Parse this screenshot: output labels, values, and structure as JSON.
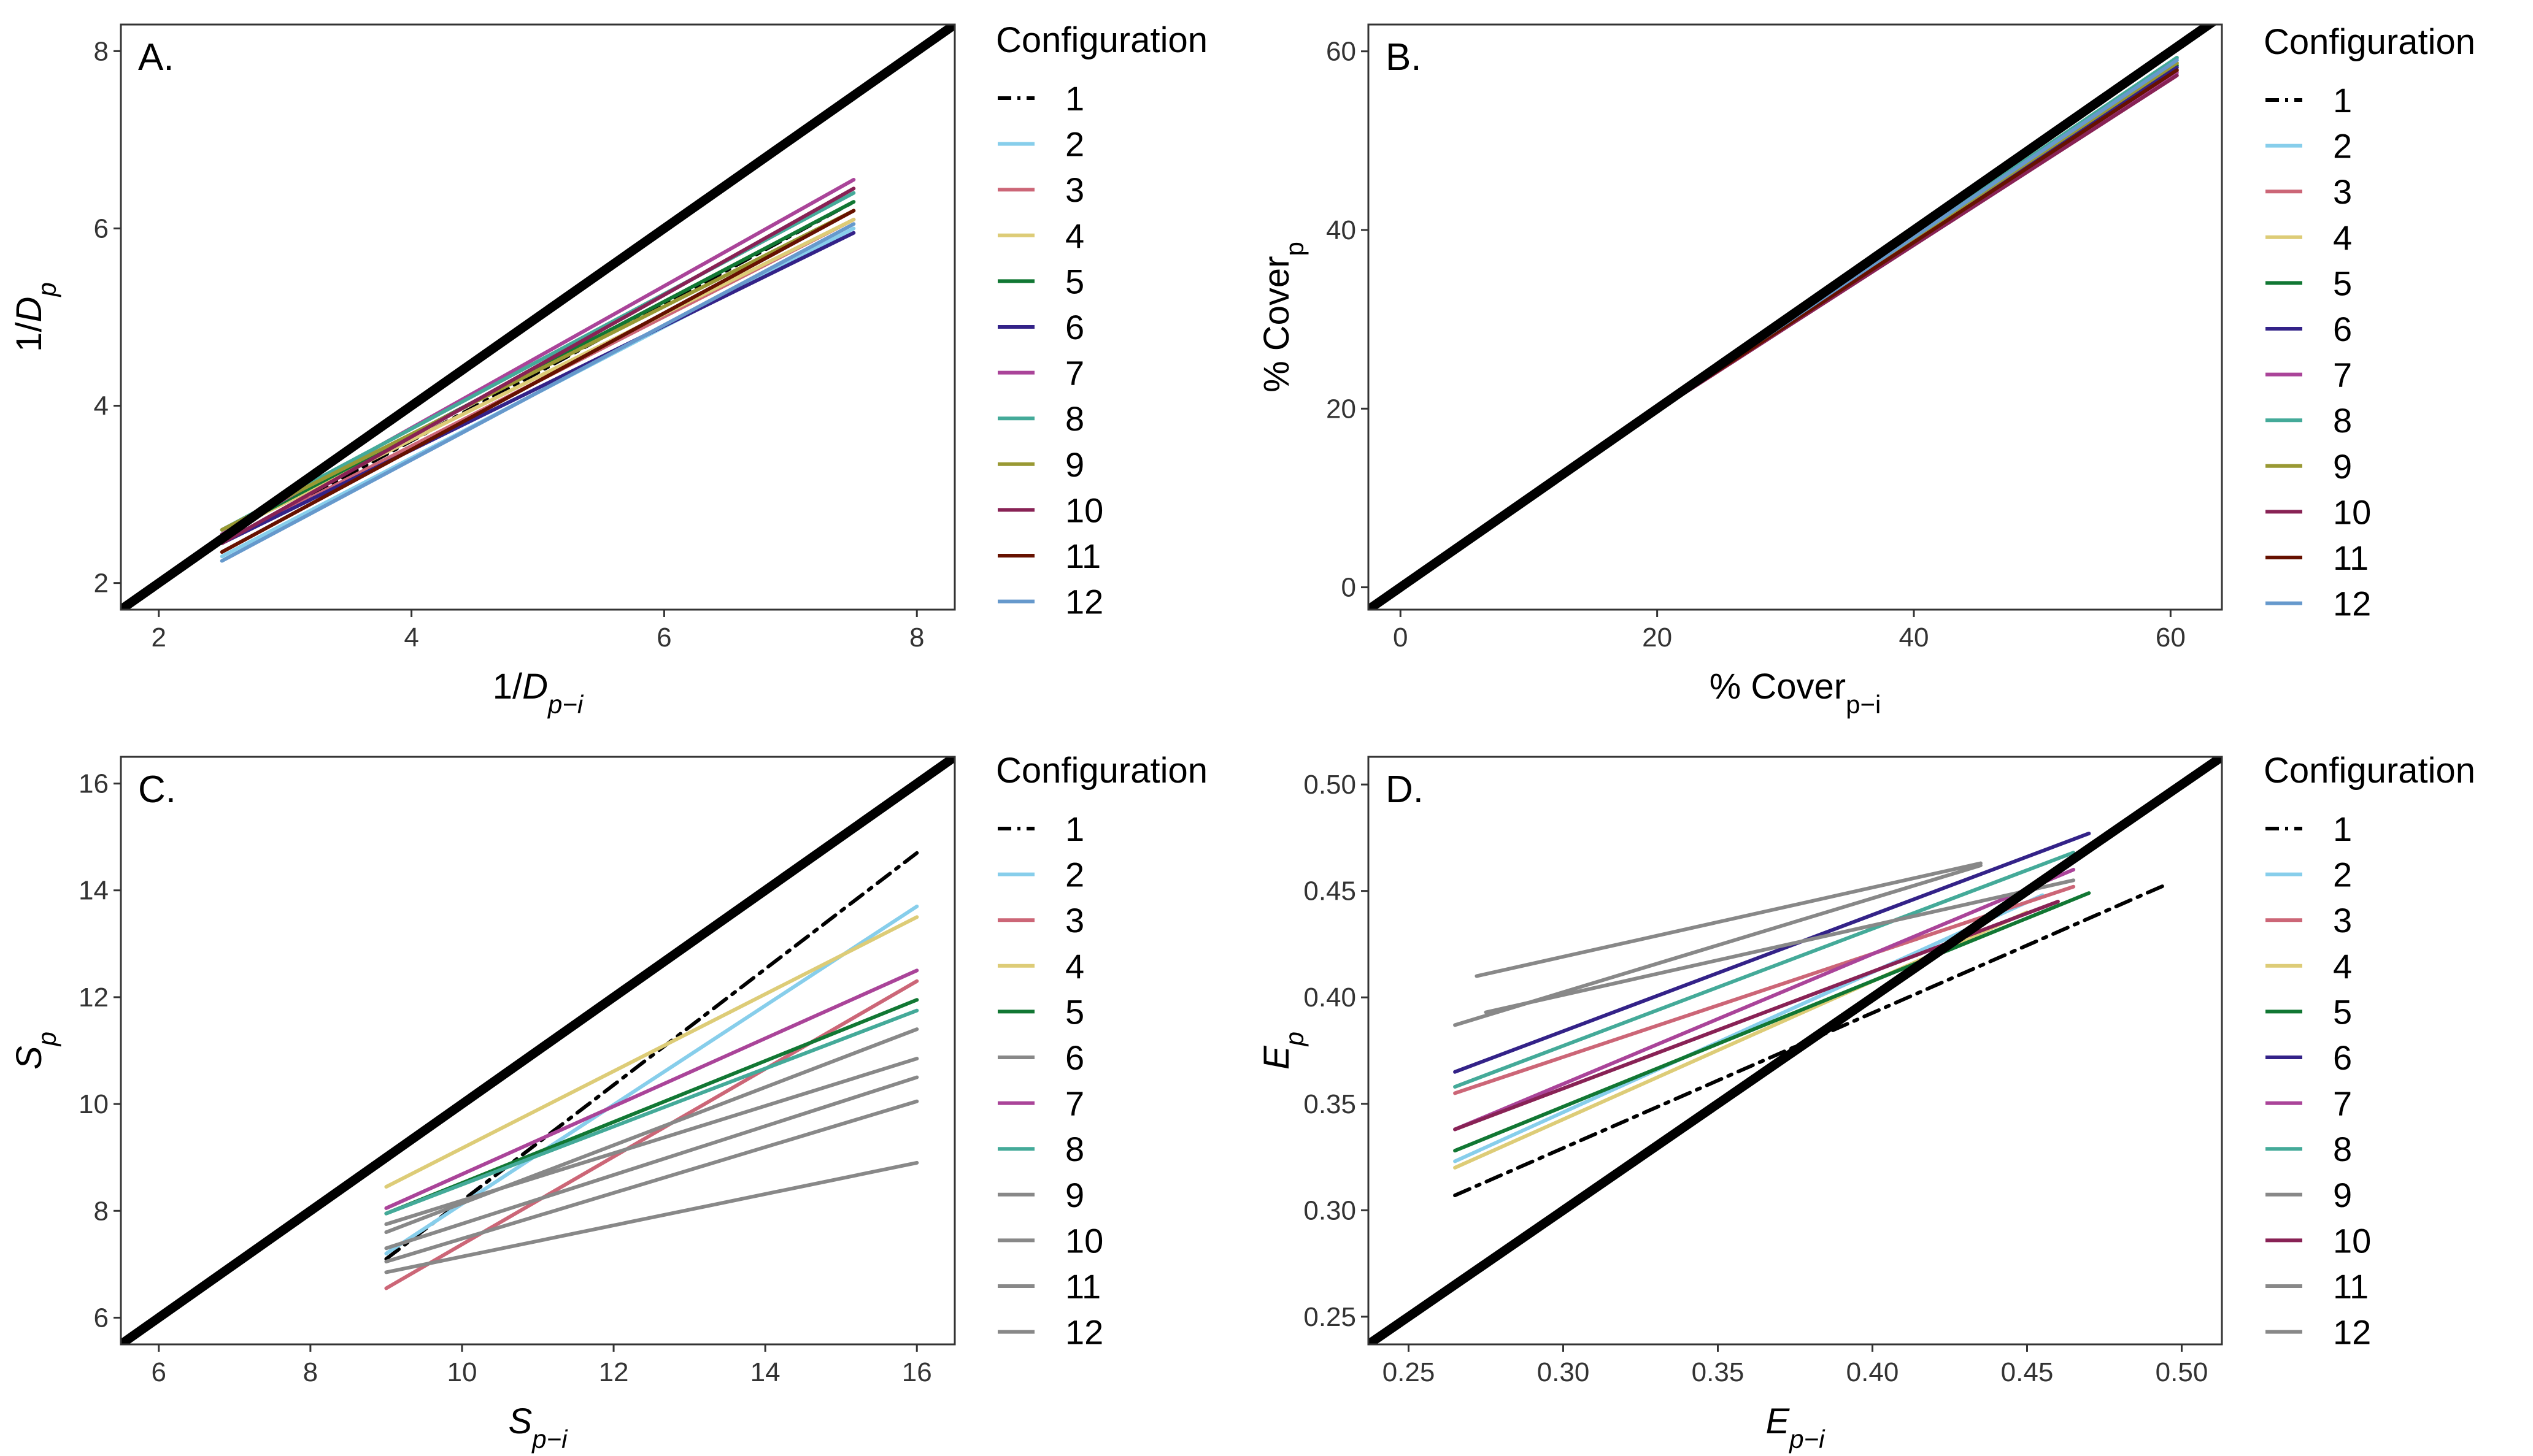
{
  "chart_data": [
    {
      "id": "A",
      "panel_label": "A.",
      "type": "line",
      "ylabel": {
        "base": "1/",
        "var": "D",
        "sub": "p"
      },
      "xlabel": {
        "base": "1/",
        "var": "D",
        "sub": "p−i"
      },
      "xlim": [
        1.7,
        8.3
      ],
      "ylim": [
        1.7,
        8.3
      ],
      "xticks": [
        2,
        4,
        6,
        8
      ],
      "yticks": [
        2,
        4,
        6,
        8
      ],
      "tick_labels_x": [
        "2",
        "4",
        "6",
        "8"
      ],
      "tick_labels_y": [
        "2",
        "4",
        "6",
        "8"
      ],
      "reference_line": {
        "x": [
          1.7,
          8.3
        ],
        "y": [
          1.7,
          8.3
        ]
      },
      "series": [
        {
          "name": "1",
          "x": [
            2.5,
            7.5
          ],
          "y": [
            2.45,
            6.3
          ]
        },
        {
          "name": "2",
          "x": [
            2.5,
            7.5
          ],
          "y": [
            2.3,
            6.0
          ]
        },
        {
          "name": "3",
          "x": [
            2.5,
            7.5
          ],
          "y": [
            2.45,
            6.1
          ]
        },
        {
          "name": "4",
          "x": [
            2.5,
            7.5
          ],
          "y": [
            2.55,
            6.1
          ]
        },
        {
          "name": "5",
          "x": [
            2.5,
            7.5
          ],
          "y": [
            2.55,
            6.3
          ]
        },
        {
          "name": "6",
          "x": [
            2.5,
            7.5
          ],
          "y": [
            2.45,
            5.95
          ]
        },
        {
          "name": "7",
          "x": [
            2.5,
            7.5
          ],
          "y": [
            2.55,
            6.55
          ]
        },
        {
          "name": "8",
          "x": [
            2.5,
            7.5
          ],
          "y": [
            2.6,
            6.4
          ]
        },
        {
          "name": "9",
          "x": [
            2.5,
            7.5
          ],
          "y": [
            2.6,
            6.2
          ]
        },
        {
          "name": "10",
          "x": [
            2.5,
            7.5
          ],
          "y": [
            2.45,
            6.45
          ]
        },
        {
          "name": "11",
          "x": [
            2.5,
            7.5
          ],
          "y": [
            2.35,
            6.2
          ]
        },
        {
          "name": "12",
          "x": [
            2.5,
            7.5
          ],
          "y": [
            2.25,
            6.05
          ]
        }
      ]
    },
    {
      "id": "B",
      "panel_label": "B.",
      "type": "line",
      "ylabel": {
        "base": "% Cover",
        "var": "",
        "sub": "p"
      },
      "xlabel": {
        "base": "% Cover",
        "var": "",
        "sub": "p−i"
      },
      "xlim": [
        -2.5,
        64
      ],
      "ylim": [
        -2.5,
        63
      ],
      "xticks": [
        0,
        20,
        40,
        60
      ],
      "yticks": [
        0,
        20,
        40,
        60
      ],
      "tick_labels_x": [
        "0",
        "20",
        "40",
        "60"
      ],
      "tick_labels_y": [
        "0",
        "20",
        "40",
        "60"
      ],
      "reference_line": {
        "x": [
          -2.5,
          64
        ],
        "y": [
          -2.5,
          64
        ]
      },
      "series": [
        {
          "name": "1",
          "x": [
            17,
            60.5
          ],
          "y": [
            17,
            58.5
          ]
        },
        {
          "name": "2",
          "x": [
            17,
            60.5
          ],
          "y": [
            17,
            59.2
          ]
        },
        {
          "name": "3",
          "x": [
            17,
            60.5
          ],
          "y": [
            17,
            57.8
          ]
        },
        {
          "name": "4",
          "x": [
            17,
            60.5
          ],
          "y": [
            17,
            58.6
          ]
        },
        {
          "name": "5",
          "x": [
            17,
            60.5
          ],
          "y": [
            17,
            58.4
          ]
        },
        {
          "name": "6",
          "x": [
            17,
            60.5
          ],
          "y": [
            17,
            58.2
          ]
        },
        {
          "name": "7",
          "x": [
            17,
            60.5
          ],
          "y": [
            17,
            57.6
          ]
        },
        {
          "name": "8",
          "x": [
            17,
            60.5
          ],
          "y": [
            17,
            59.3
          ]
        },
        {
          "name": "9",
          "x": [
            17,
            60.5
          ],
          "y": [
            17,
            58.7
          ]
        },
        {
          "name": "10",
          "x": [
            17,
            60.5
          ],
          "y": [
            17,
            57.3
          ]
        },
        {
          "name": "11",
          "x": [
            17,
            60.5
          ],
          "y": [
            17,
            57.9
          ]
        },
        {
          "name": "12",
          "x": [
            17,
            60.5
          ],
          "y": [
            17,
            59.0
          ]
        }
      ]
    },
    {
      "id": "C",
      "panel_label": "C.",
      "type": "line",
      "ylabel": {
        "base": "",
        "var": "S",
        "sub": "p"
      },
      "xlabel": {
        "base": "",
        "var": "S",
        "sub": "p−i"
      },
      "xlim": [
        5.5,
        16.5
      ],
      "ylim": [
        5.5,
        16.5
      ],
      "xticks": [
        6,
        8,
        10,
        12,
        14,
        16
      ],
      "yticks": [
        6,
        8,
        10,
        12,
        14,
        16
      ],
      "tick_labels_x": [
        "6",
        "8",
        "10",
        "12",
        "14",
        "16"
      ],
      "tick_labels_y": [
        "6",
        "8",
        "10",
        "12",
        "14",
        "16"
      ],
      "reference_line": {
        "x": [
          5.5,
          16.5
        ],
        "y": [
          5.5,
          16.5
        ]
      },
      "series": [
        {
          "name": "1",
          "x": [
            9,
            16
          ],
          "y": [
            7.1,
            14.7
          ]
        },
        {
          "name": "2",
          "x": [
            9,
            16
          ],
          "y": [
            7.2,
            13.7
          ]
        },
        {
          "name": "3",
          "x": [
            9,
            16
          ],
          "y": [
            6.55,
            12.3
          ]
        },
        {
          "name": "4",
          "x": [
            9,
            16
          ],
          "y": [
            8.45,
            13.5
          ]
        },
        {
          "name": "5",
          "x": [
            9,
            16
          ],
          "y": [
            7.95,
            11.95
          ]
        },
        {
          "name": "6",
          "x": [
            9,
            16
          ],
          "y": [
            6.85,
            8.9
          ]
        },
        {
          "name": "7",
          "x": [
            9,
            16
          ],
          "y": [
            8.05,
            12.5
          ]
        },
        {
          "name": "8",
          "x": [
            9,
            16
          ],
          "y": [
            7.95,
            11.75
          ]
        },
        {
          "name": "9",
          "x": [
            9,
            16
          ],
          "y": [
            7.6,
            11.4
          ]
        },
        {
          "name": "10",
          "x": [
            9,
            16
          ],
          "y": [
            7.75,
            10.85
          ]
        },
        {
          "name": "11",
          "x": [
            9,
            16
          ],
          "y": [
            7.3,
            10.5
          ]
        },
        {
          "name": "12",
          "x": [
            9,
            16
          ],
          "y": [
            7.05,
            10.05
          ]
        }
      ]
    },
    {
      "id": "D",
      "panel_label": "D.",
      "type": "line",
      "ylabel": {
        "base": "",
        "var": "E",
        "sub": "p"
      },
      "xlabel": {
        "base": "",
        "var": "E",
        "sub": "p−i"
      },
      "xlim": [
        0.237,
        0.513
      ],
      "ylim": [
        0.237,
        0.513
      ],
      "xticks": [
        0.25,
        0.3,
        0.35,
        0.4,
        0.45,
        0.5
      ],
      "yticks": [
        0.25,
        0.3,
        0.35,
        0.4,
        0.45,
        0.5
      ],
      "tick_labels_x": [
        "0.25",
        "0.30",
        "0.35",
        "0.40",
        "0.45",
        "0.50"
      ],
      "tick_labels_y": [
        "0.25",
        "0.30",
        "0.35",
        "0.40",
        "0.45",
        "0.50"
      ],
      "reference_line": {
        "x": [
          0.237,
          0.513
        ],
        "y": [
          0.237,
          0.513
        ]
      },
      "series": [
        {
          "name": "1",
          "x": [
            0.265,
            0.495
          ],
          "y": [
            0.307,
            0.453
          ]
        },
        {
          "name": "2",
          "x": [
            0.265,
            0.455
          ],
          "y": [
            0.323,
            0.448
          ]
        },
        {
          "name": "3",
          "x": [
            0.265,
            0.465
          ],
          "y": [
            0.355,
            0.452
          ]
        },
        {
          "name": "4",
          "x": [
            0.265,
            0.45
          ],
          "y": [
            0.32,
            0.44
          ]
        },
        {
          "name": "5",
          "x": [
            0.265,
            0.47
          ],
          "y": [
            0.328,
            0.449
          ]
        },
        {
          "name": "6",
          "x": [
            0.265,
            0.47
          ],
          "y": [
            0.365,
            0.477
          ]
        },
        {
          "name": "7",
          "x": [
            0.265,
            0.465
          ],
          "y": [
            0.338,
            0.46
          ]
        },
        {
          "name": "8",
          "x": [
            0.265,
            0.465
          ],
          "y": [
            0.358,
            0.468
          ]
        },
        {
          "name": "9",
          "x": [
            0.272,
            0.435
          ],
          "y": [
            0.41,
            0.463
          ]
        },
        {
          "name": "10",
          "x": [
            0.265,
            0.46
          ],
          "y": [
            0.338,
            0.445
          ]
        },
        {
          "name": "11",
          "x": [
            0.265,
            0.435
          ],
          "y": [
            0.387,
            0.462
          ]
        },
        {
          "name": "12",
          "x": [
            0.275,
            0.465
          ],
          "y": [
            0.393,
            0.455
          ]
        }
      ]
    }
  ],
  "legends": [
    {
      "title": "Configuration",
      "entries": [
        {
          "label": "1",
          "color": "#000000",
          "dash": "dotdash"
        },
        {
          "label": "2",
          "color": "#87CEEB"
        },
        {
          "label": "3",
          "color": "#CC6677"
        },
        {
          "label": "4",
          "color": "#DDCC77"
        },
        {
          "label": "5",
          "color": "#117733"
        },
        {
          "label": "6",
          "color": "#332288"
        },
        {
          "label": "7",
          "color": "#AA4499"
        },
        {
          "label": "8",
          "color": "#44AA99"
        },
        {
          "label": "9",
          "color": "#999933"
        },
        {
          "label": "10",
          "color": "#882255"
        },
        {
          "label": "11",
          "color": "#661100"
        },
        {
          "label": "12",
          "color": "#6699CC"
        }
      ]
    },
    {
      "title": "Configuration",
      "entries": [
        {
          "label": "1",
          "color": "#000000",
          "dash": "dotdash"
        },
        {
          "label": "2",
          "color": "#87CEEB"
        },
        {
          "label": "3",
          "color": "#CC6677"
        },
        {
          "label": "4",
          "color": "#DDCC77"
        },
        {
          "label": "5",
          "color": "#117733"
        },
        {
          "label": "6",
          "color": "#332288"
        },
        {
          "label": "7",
          "color": "#AA4499"
        },
        {
          "label": "8",
          "color": "#44AA99"
        },
        {
          "label": "9",
          "color": "#999933"
        },
        {
          "label": "10",
          "color": "#882255"
        },
        {
          "label": "11",
          "color": "#661100"
        },
        {
          "label": "12",
          "color": "#6699CC"
        }
      ]
    },
    {
      "title": "Configuration",
      "entries": [
        {
          "label": "1",
          "color": "#000000",
          "dash": "dotdash"
        },
        {
          "label": "2",
          "color": "#87CEEB"
        },
        {
          "label": "3",
          "color": "#CC6677"
        },
        {
          "label": "4",
          "color": "#DDCC77"
        },
        {
          "label": "5",
          "color": "#117733"
        },
        {
          "label": "6",
          "color": "#888888"
        },
        {
          "label": "7",
          "color": "#AA4499"
        },
        {
          "label": "8",
          "color": "#44AA99"
        },
        {
          "label": "9",
          "color": "#888888"
        },
        {
          "label": "10",
          "color": "#888888"
        },
        {
          "label": "11",
          "color": "#888888"
        },
        {
          "label": "12",
          "color": "#888888"
        }
      ]
    },
    {
      "title": "Configuration",
      "entries": [
        {
          "label": "1",
          "color": "#000000",
          "dash": "dotdash"
        },
        {
          "label": "2",
          "color": "#87CEEB"
        },
        {
          "label": "3",
          "color": "#CC6677"
        },
        {
          "label": "4",
          "color": "#DDCC77"
        },
        {
          "label": "5",
          "color": "#117733"
        },
        {
          "label": "6",
          "color": "#332288"
        },
        {
          "label": "7",
          "color": "#AA4499"
        },
        {
          "label": "8",
          "color": "#44AA99"
        },
        {
          "label": "9",
          "color": "#888888"
        },
        {
          "label": "10",
          "color": "#882255"
        },
        {
          "label": "11",
          "color": "#888888"
        },
        {
          "label": "12",
          "color": "#888888"
        }
      ]
    }
  ]
}
